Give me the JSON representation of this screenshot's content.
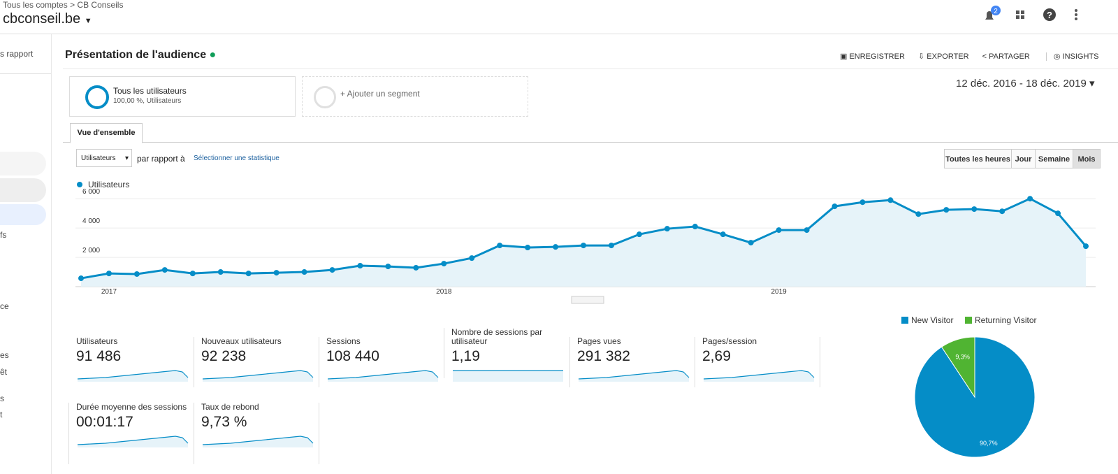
{
  "header": {
    "breadcrumb_1": "Tous les comptes",
    "breadcrumb_sep": ">",
    "breadcrumb_2": "CB Conseils",
    "property": "cbconseil.be",
    "notification_count": "2"
  },
  "sidebar": {
    "items": [
      "s rapport",
      "fs",
      "ce",
      "es",
      "êt",
      "s",
      "t"
    ]
  },
  "page_title": "Présentation de l'audience",
  "toolbar": {
    "save": "ENREGISTRER",
    "export": "EXPORTER",
    "share": "PARTAGER",
    "insights": "INSIGHTS"
  },
  "segments": {
    "all_users": "Tous les utilisateurs",
    "all_users_sub": "100,00 %, Utilisateurs",
    "add": "+ Ajouter un segment"
  },
  "date_range": "12 déc. 2016 - 18 déc. 2019",
  "tab": "Vue d'ensemble",
  "controls": {
    "metric": "Utilisateurs",
    "versus": "par rapport à",
    "select": "Sélectionner une statistique",
    "periods": [
      "Toutes les heures",
      "Jour",
      "Semaine",
      "Mois"
    ]
  },
  "chart_data": [
    {
      "type": "line",
      "categories": [
        null,
        "2017",
        null,
        null,
        null,
        null,
        null,
        null,
        null,
        null,
        null,
        null,
        null,
        "2018",
        null,
        null,
        null,
        null,
        null,
        null,
        null,
        null,
        null,
        null,
        null,
        "2019",
        null,
        null,
        null,
        null,
        null,
        null,
        null,
        null,
        null,
        null,
        null
      ],
      "series": [
        {
          "name": "Utilisateurs",
          "color": "#058dc7",
          "values": [
            570,
            900,
            860,
            1140,
            900,
            1000,
            900,
            950,
            1000,
            1140,
            1430,
            1380,
            1290,
            1570,
            1950,
            2810,
            2670,
            2710,
            2810,
            2810,
            3570,
            3950,
            4100,
            3570,
            3000,
            3860,
            3860,
            5480,
            5760,
            5900,
            4950,
            5240,
            5290,
            5140,
            6000,
            5000,
            2760
          ]
        }
      ],
      "ylim": [
        0,
        6200
      ],
      "yticks": [
        {
          "value": 2000,
          "label": "2 000"
        },
        {
          "value": 4000,
          "label": "4 000"
        },
        {
          "value": 6000,
          "label": "6 000"
        }
      ],
      "grid": true
    },
    {
      "type": "pie",
      "categories": [
        "New Visitor",
        "Returning Visitor"
      ],
      "values": [
        90.7,
        9.3
      ],
      "value_labels": [
        "90,7%",
        "9,3%"
      ],
      "colors": [
        "#058dc7",
        "#50b432"
      ]
    }
  ],
  "metrics": [
    {
      "label": "Utilisateurs",
      "value": "91 486"
    },
    {
      "label": "Nouveaux utilisateurs",
      "value": "92 238"
    },
    {
      "label": "Sessions",
      "value": "108 440"
    },
    {
      "label": "Nombre de sessions par utilisateur",
      "value": "1,19"
    },
    {
      "label": "Pages vues",
      "value": "291 382"
    },
    {
      "label": "Pages/session",
      "value": "2,69"
    },
    {
      "label": "Durée moyenne des sessions",
      "value": "00:01:17"
    },
    {
      "label": "Taux de rebond",
      "value": "9,73 %"
    }
  ]
}
